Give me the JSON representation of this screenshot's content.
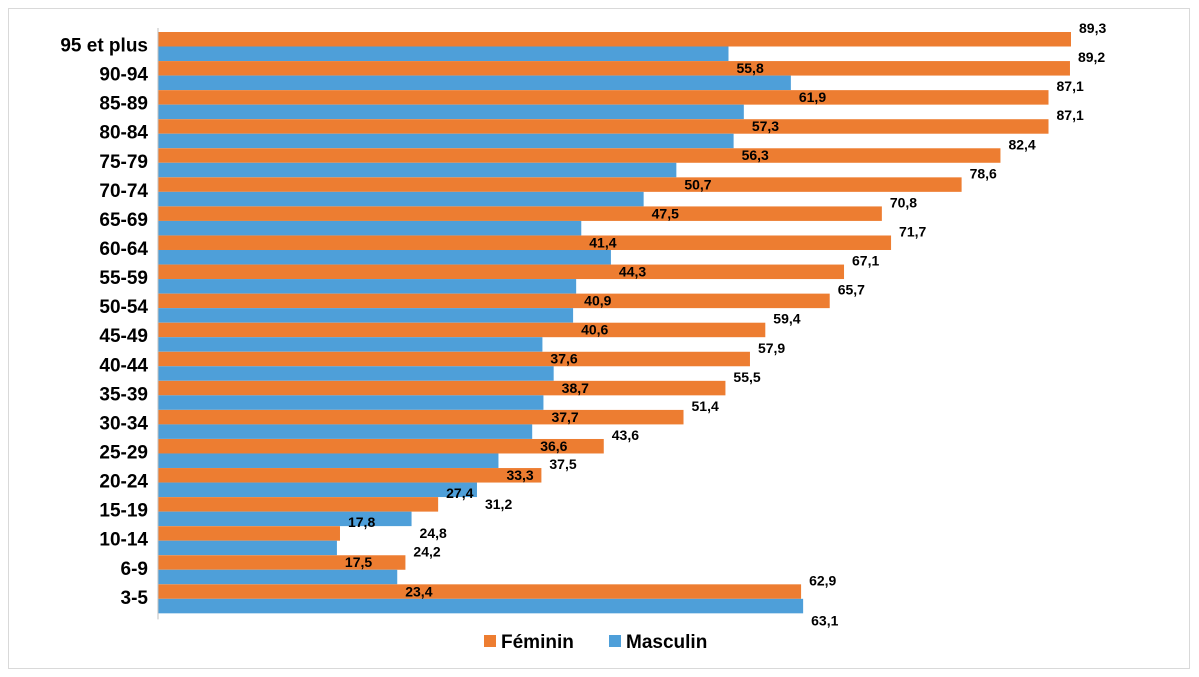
{
  "chart_data": {
    "type": "bar",
    "orientation": "horizontal",
    "categories": [
      "95 et plus",
      "90-94",
      "85-89",
      "80-84",
      "75-79",
      "70-74",
      "65-69",
      "60-64",
      "55-59",
      "50-54",
      "45-49",
      "40-44",
      "35-39",
      "30-34",
      "25-29",
      "20-24",
      "15-19",
      "10-14",
      "6-9",
      "3-5"
    ],
    "series": [
      {
        "name": "Féminin",
        "color": "#ED7D31",
        "values": [
          89.3,
          89.2,
          87.1,
          87.1,
          82.4,
          78.6,
          70.8,
          71.7,
          67.1,
          65.7,
          59.4,
          57.9,
          55.5,
          51.4,
          43.6,
          37.5,
          27.4,
          17.8,
          24.2,
          62.9
        ],
        "labels": [
          "89,3",
          "89,2",
          "87,1",
          "87,1",
          "82,4",
          "78,6",
          "70,8",
          "71,7",
          "67,1",
          "65,7",
          "59,4",
          "57,9",
          "55,5",
          "51,4",
          "43,6",
          "37,5",
          "27,4",
          "17,8",
          "24,2",
          "62,9"
        ]
      },
      {
        "name": "Masculin",
        "color": "#4E9FD9",
        "values": [
          55.8,
          61.9,
          57.3,
          56.3,
          50.7,
          47.5,
          41.4,
          44.3,
          40.9,
          40.6,
          37.6,
          38.7,
          37.7,
          36.6,
          33.3,
          31.2,
          24.8,
          17.5,
          23.4,
          63.1
        ],
        "labels": [
          "55,8",
          "61,9",
          "57,3",
          "56,3",
          "50,7",
          "47,5",
          "41,4",
          "44,3",
          "40,9",
          "40,6",
          "37,6",
          "38,7",
          "37,7",
          "36,6",
          "33,3",
          "31,2",
          "24,8",
          "17,5",
          "23,4",
          "63,1"
        ]
      }
    ],
    "xlim": [
      0,
      100
    ],
    "grid": false,
    "legend_position": "bottom-center",
    "title": "",
    "xlabel": "",
    "ylabel": ""
  }
}
